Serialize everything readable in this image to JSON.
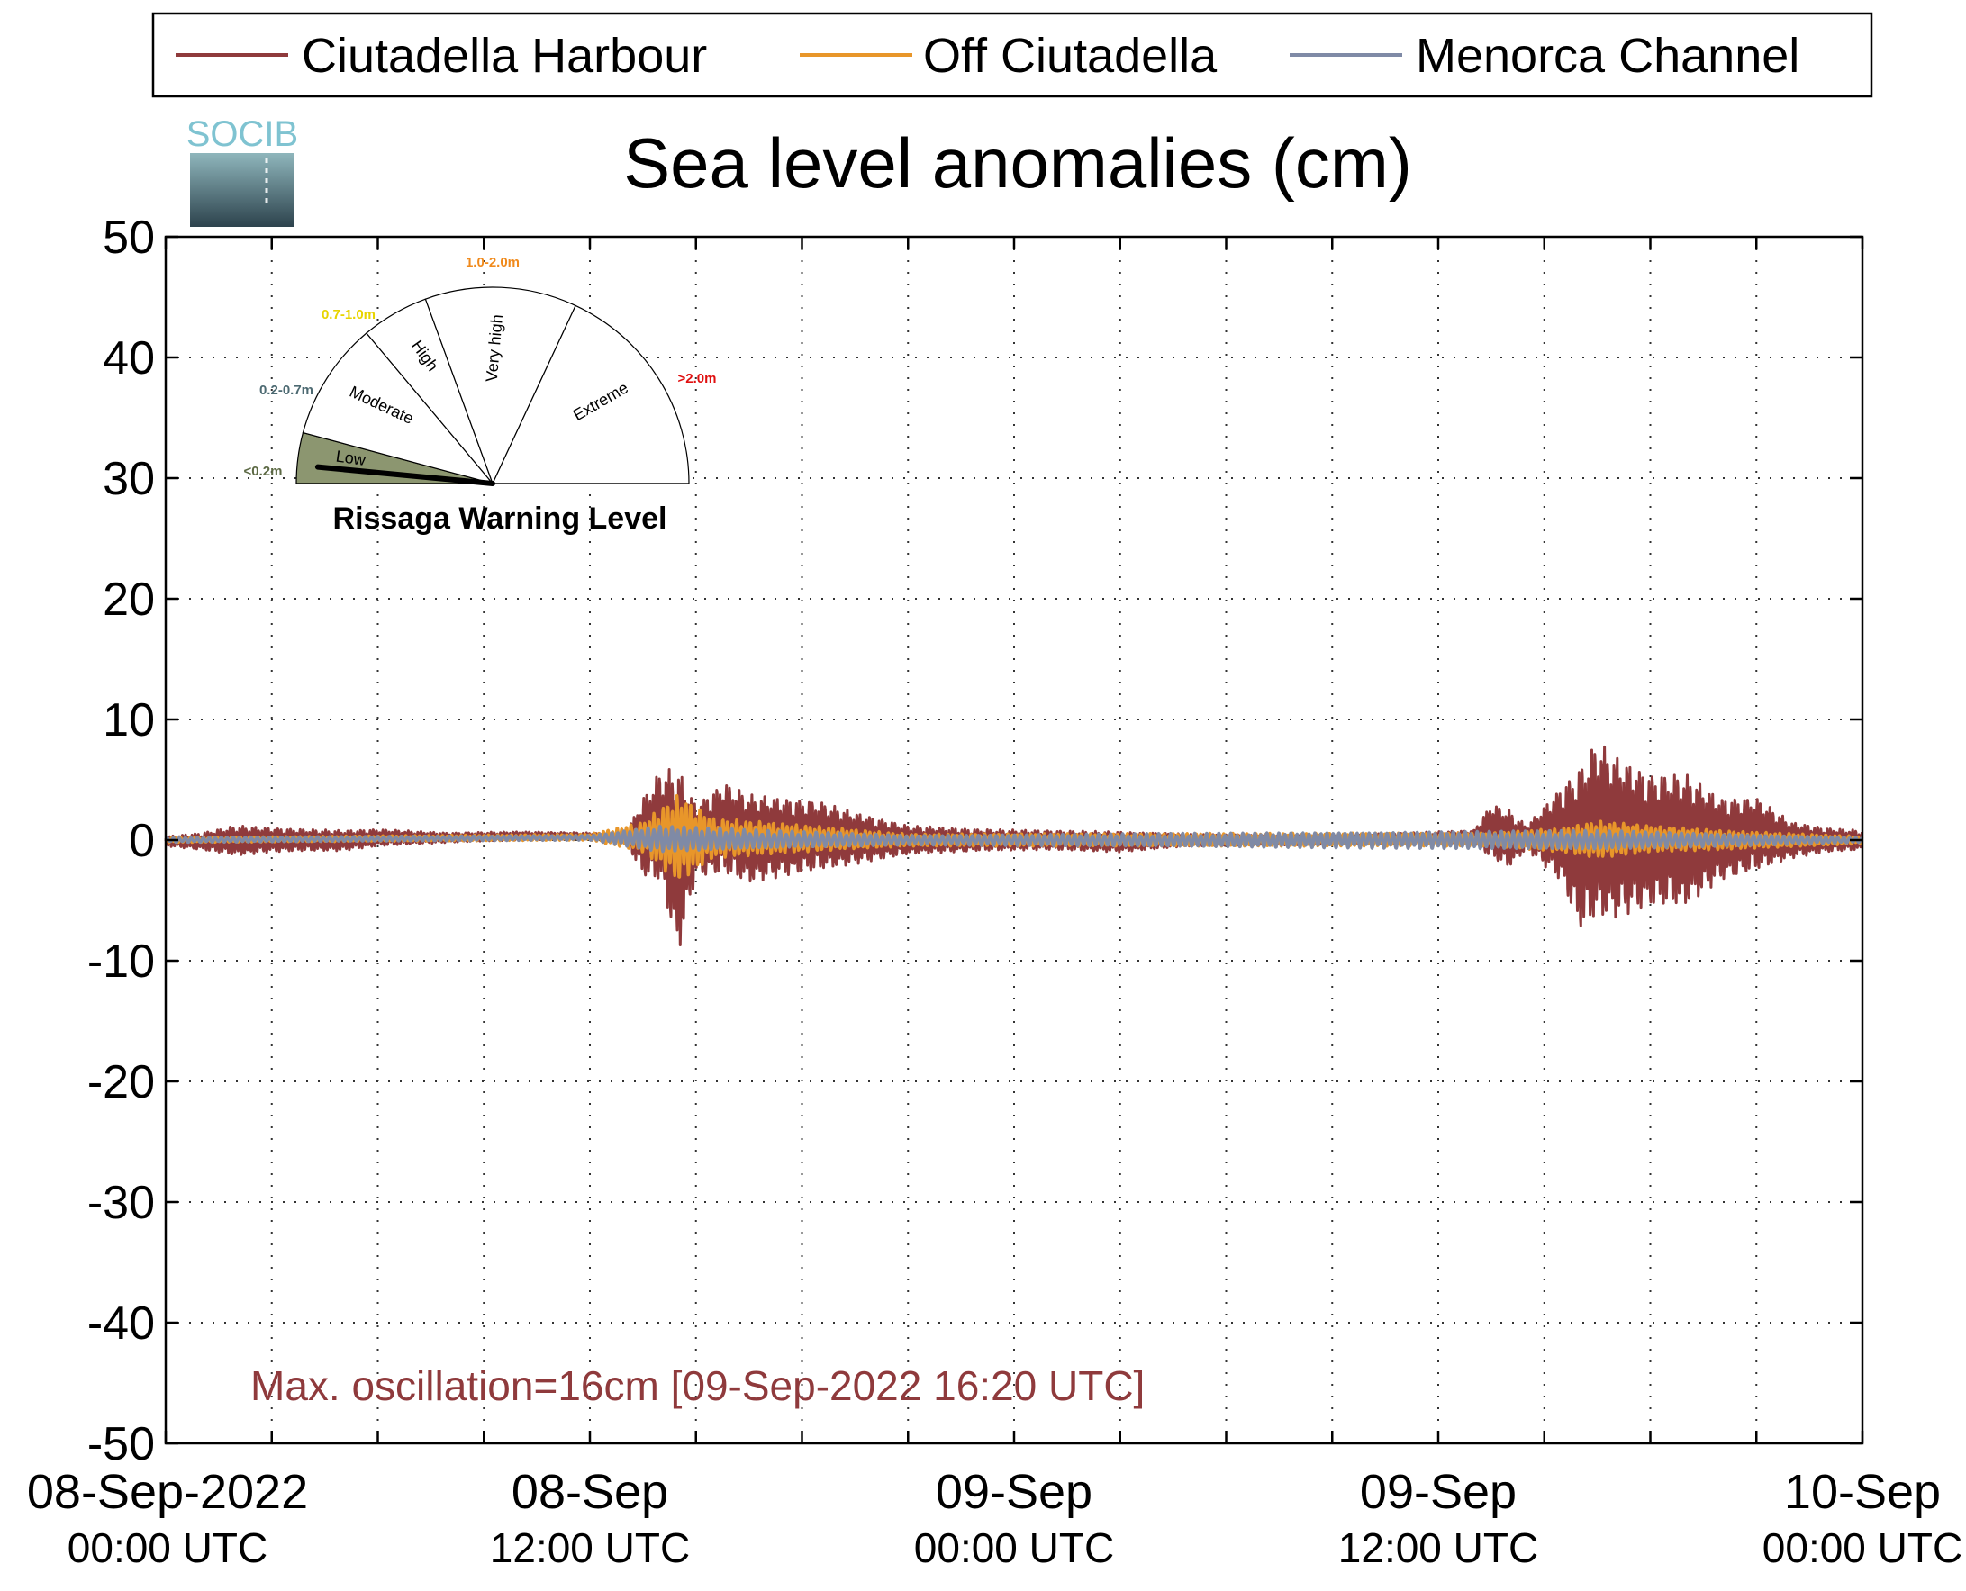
{
  "chart_data": {
    "type": "line",
    "title": "Sea level anomalies (cm)",
    "xlabel": "",
    "ylabel": "",
    "ylim": [
      -50,
      50
    ],
    "yticks": [
      50,
      40,
      30,
      20,
      10,
      0,
      -10,
      -20,
      -30,
      -40,
      -50
    ],
    "xlim_hours": [
      0,
      48
    ],
    "x_tick_labels": [
      {
        "hour": 0,
        "date": "08-Sep-2022",
        "time": "00:00 UTC"
      },
      {
        "hour": 12,
        "date": "08-Sep",
        "time": "12:00 UTC"
      },
      {
        "hour": 24,
        "date": "09-Sep",
        "time": "00:00 UTC"
      },
      {
        "hour": 36,
        "date": "09-Sep",
        "time": "12:00 UTC"
      },
      {
        "hour": 48,
        "date": "10-Sep",
        "time": "00:00 UTC"
      }
    ],
    "grid": true,
    "legend_position": "top",
    "series": [
      {
        "name": "Ciutadella Harbour",
        "color": "#8f3a3c",
        "envelope": [
          {
            "hour": 0.0,
            "max": 0.3,
            "min": -0.5
          },
          {
            "hour": 1.0,
            "max": 0.6,
            "min": -0.8
          },
          {
            "hour": 2.0,
            "max": 1.2,
            "min": -1.3
          },
          {
            "hour": 3.0,
            "max": 1.0,
            "min": -1.0
          },
          {
            "hour": 4.0,
            "max": 0.9,
            "min": -0.9
          },
          {
            "hour": 5.0,
            "max": 0.8,
            "min": -0.9
          },
          {
            "hour": 6.0,
            "max": 0.9,
            "min": -0.5
          },
          {
            "hour": 8.0,
            "max": 0.6,
            "min": -0.2
          },
          {
            "hour": 10.0,
            "max": 0.7,
            "min": 0.0
          },
          {
            "hour": 12.0,
            "max": 0.6,
            "min": 0.1
          },
          {
            "hour": 13.0,
            "max": 0.5,
            "min": 0.0
          },
          {
            "hour": 13.5,
            "max": 3.5,
            "min": -3.0
          },
          {
            "hour": 14.0,
            "max": 5.8,
            "min": -3.5
          },
          {
            "hour": 14.5,
            "max": 6.0,
            "min": -9.5
          },
          {
            "hour": 15.0,
            "max": 3.0,
            "min": -3.0
          },
          {
            "hour": 15.8,
            "max": 4.8,
            "min": -2.8
          },
          {
            "hour": 16.5,
            "max": 3.8,
            "min": -3.6
          },
          {
            "hour": 17.5,
            "max": 3.5,
            "min": -3.0
          },
          {
            "hour": 18.5,
            "max": 3.2,
            "min": -2.5
          },
          {
            "hour": 19.5,
            "max": 2.3,
            "min": -2.0
          },
          {
            "hour": 21.0,
            "max": 1.2,
            "min": -1.2
          },
          {
            "hour": 23.0,
            "max": 0.9,
            "min": -0.9
          },
          {
            "hour": 25.0,
            "max": 0.8,
            "min": -0.8
          },
          {
            "hour": 27.0,
            "max": 0.7,
            "min": -1.0
          },
          {
            "hour": 29.0,
            "max": 0.5,
            "min": -0.5
          },
          {
            "hour": 32.0,
            "max": 0.4,
            "min": -0.4
          },
          {
            "hour": 35.0,
            "max": 0.6,
            "min": -0.3
          },
          {
            "hour": 37.0,
            "max": 0.8,
            "min": -0.3
          },
          {
            "hour": 37.5,
            "max": 3.0,
            "min": -1.5
          },
          {
            "hour": 38.0,
            "max": 2.5,
            "min": -2.3
          },
          {
            "hour": 38.5,
            "max": 1.2,
            "min": -0.8
          },
          {
            "hour": 39.5,
            "max": 4.5,
            "min": -3.5
          },
          {
            "hour": 40.0,
            "max": 6.0,
            "min": -7.5
          },
          {
            "hour": 40.5,
            "max": 8.3,
            "min": -6.5
          },
          {
            "hour": 41.0,
            "max": 7.0,
            "min": -6.5
          },
          {
            "hour": 42.0,
            "max": 5.5,
            "min": -5.5
          },
          {
            "hour": 43.0,
            "max": 5.5,
            "min": -5.5
          },
          {
            "hour": 44.0,
            "max": 3.5,
            "min": -3.3
          },
          {
            "hour": 45.0,
            "max": 3.5,
            "min": -2.5
          },
          {
            "hour": 46.0,
            "max": 1.5,
            "min": -1.5
          },
          {
            "hour": 47.0,
            "max": 1.0,
            "min": -1.0
          },
          {
            "hour": 48.0,
            "max": 0.8,
            "min": -0.8
          }
        ]
      },
      {
        "name": "Off Ciutadella",
        "color": "#e8962a",
        "envelope": [
          {
            "hour": 0.0,
            "max": 0.2,
            "min": -0.2
          },
          {
            "hour": 12.0,
            "max": 0.5,
            "min": 0.0
          },
          {
            "hour": 13.5,
            "max": 1.5,
            "min": -1.0
          },
          {
            "hour": 14.5,
            "max": 3.8,
            "min": -3.5
          },
          {
            "hour": 15.5,
            "max": 1.8,
            "min": -1.5
          },
          {
            "hour": 17.0,
            "max": 1.5,
            "min": -1.2
          },
          {
            "hour": 19.0,
            "max": 1.0,
            "min": -0.8
          },
          {
            "hour": 21.0,
            "max": 0.5,
            "min": -0.5
          },
          {
            "hour": 37.5,
            "max": 0.6,
            "min": -0.5
          },
          {
            "hour": 39.5,
            "max": 1.0,
            "min": -1.0
          },
          {
            "hour": 40.5,
            "max": 1.6,
            "min": -1.5
          },
          {
            "hour": 42.0,
            "max": 1.2,
            "min": -1.0
          },
          {
            "hour": 44.0,
            "max": 0.8,
            "min": -0.8
          },
          {
            "hour": 48.0,
            "max": 0.3,
            "min": -0.3
          }
        ]
      },
      {
        "name": "Menorca Channel",
        "color": "#7f8aa6",
        "envelope": [
          {
            "hour": 0.0,
            "max": 0.2,
            "min": -0.2
          },
          {
            "hour": 12.0,
            "max": 0.4,
            "min": 0.0
          },
          {
            "hour": 14.0,
            "max": 1.2,
            "min": -1.0
          },
          {
            "hour": 17.0,
            "max": 0.8,
            "min": -0.7
          },
          {
            "hour": 21.0,
            "max": 0.4,
            "min": -0.4
          },
          {
            "hour": 40.5,
            "max": 0.8,
            "min": -0.8
          },
          {
            "hour": 48.0,
            "max": 0.2,
            "min": -0.2
          }
        ]
      }
    ],
    "annotation": "Max. oscillation=16cm [09-Sep-2022 16:20 UTC]"
  },
  "logo": {
    "text": "SOCIB"
  },
  "gauge": {
    "title": "Rissaga Warning Level",
    "current_level": "Low",
    "needle_value_m": 0.08,
    "sectors": [
      {
        "label": "Low",
        "range": "<0.2m",
        "range_color": "#5d6a45",
        "fill": "#8c9670"
      },
      {
        "label": "Moderate",
        "range": "0.2-0.7m",
        "range_color": "#4d6a72",
        "fill": "#ffffff"
      },
      {
        "label": "High",
        "range": "0.7-1.0m",
        "range_color": "#e8d400",
        "fill": "#ffffff"
      },
      {
        "label": "Very high",
        "range": "1.0-2.0m",
        "range_color": "#f08a1c",
        "fill": "#ffffff"
      },
      {
        "label": "Extreme",
        "range": ">2.0m",
        "range_color": "#e01010",
        "fill": "#ffffff"
      }
    ]
  }
}
